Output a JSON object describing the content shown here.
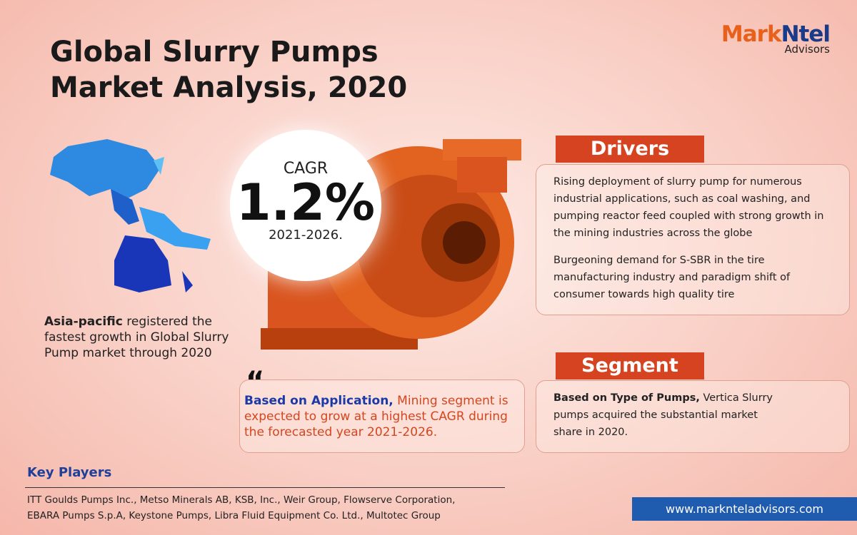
{
  "header": {
    "title_lines": [
      "Global Slurry Pumps",
      "Market Analysis, 2020"
    ]
  },
  "logo": {
    "brand_a": "Mark",
    "brand_b": "Ntel",
    "sub": "Advisors"
  },
  "cagr": {
    "label": "CAGR",
    "value": "1.2%",
    "period": "2021-2026."
  },
  "region": {
    "bold": "Asia-pacific",
    "text": "registered the fastest growth in Global Slurry Pump market through 2020"
  },
  "quote": {
    "bold": "Based on Application,",
    "text": "Mining segment is expected to grow at a highest CAGR during the forecasted year 2021-2026."
  },
  "drivers": {
    "heading": "Drivers",
    "items": [
      "Rising deployment of slurry pump for numerous industrial applications, such as coal washing, and pumping reactor feed coupled with strong growth in the mining industries across the globe",
      "Burgeoning demand for S-SBR in the tire manufacturing industry and paradigm shift of consumer towards high quality tire"
    ]
  },
  "segment": {
    "heading": "Segment",
    "bold": "Based on Type of Pumps,",
    "text": "Vertica Slurry pumps acquired the substantial market share in 2020."
  },
  "key_players": {
    "heading": "Key Players",
    "lines": [
      "ITT Goulds Pumps Inc., Metso Minerals AB, KSB, Inc., Weir Group, Flowserve Corporation,",
      "EBARA Pumps S.p.A, Keystone Pumps, Libra Fluid Equipment Co. Ltd., Multotec Group"
    ]
  },
  "footer": {
    "url": "www.marknteladvisors.com"
  }
}
